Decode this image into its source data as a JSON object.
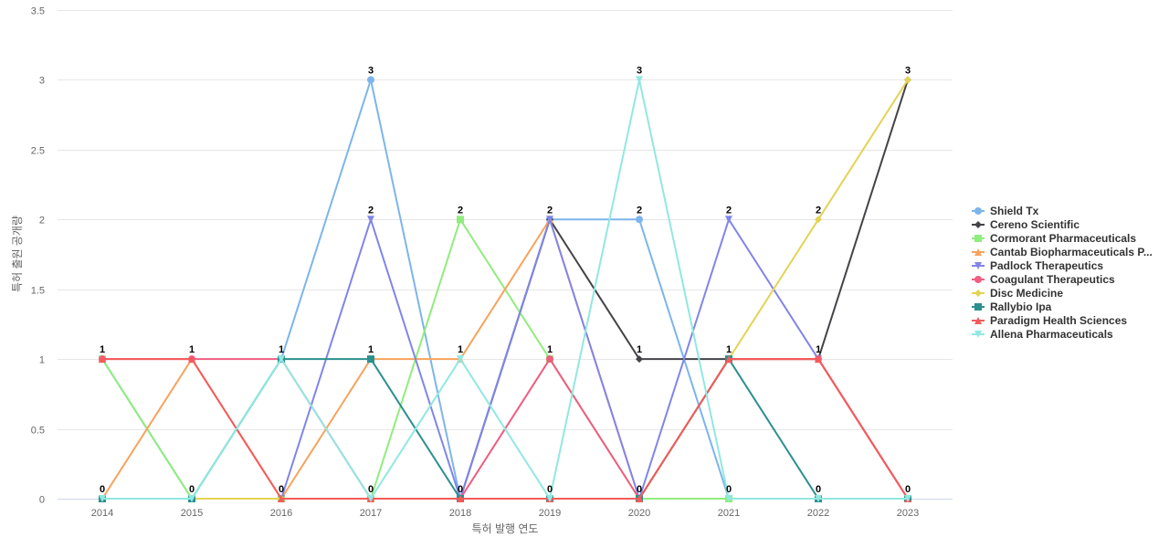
{
  "chart_data": {
    "type": "line",
    "title": "",
    "xlabel": "특허 발행 연도",
    "ylabel": "특허 출원 공개량",
    "x": [
      "2014",
      "2015",
      "2016",
      "2017",
      "2018",
      "2019",
      "2020",
      "2021",
      "2022",
      "2023"
    ],
    "ylim": [
      0,
      3.5
    ],
    "yticks": [
      0,
      0.5,
      1,
      1.5,
      2,
      2.5,
      3,
      3.5
    ],
    "grid": "horizontal",
    "legend_position": "right",
    "series": [
      {
        "name": "Shield Tx",
        "legend_label": "Shield Tx",
        "color": "#7cb5ec",
        "marker": "circle",
        "values": [
          1,
          0,
          1,
          3,
          0,
          2,
          2,
          0,
          0,
          0
        ]
      },
      {
        "name": "Cereno Scientific",
        "legend_label": "Cereno Scientific",
        "color": "#434348",
        "marker": "diamond",
        "values": [
          0,
          0,
          0,
          0,
          0,
          2,
          1,
          1,
          1,
          3
        ]
      },
      {
        "name": "Cormorant Pharmaceuticals",
        "legend_label": "Cormorant Pharmaceuticals",
        "color": "#90ed7d",
        "marker": "square",
        "values": [
          1,
          0,
          0,
          0,
          2,
          1,
          0,
          0,
          0,
          0
        ]
      },
      {
        "name": "Cantab Biopharmaceuticals P...",
        "legend_label": "Cantab Biopharmaceuticals P...",
        "color": "#f7a35c",
        "marker": "triangle",
        "values": [
          0,
          1,
          0,
          1,
          1,
          2,
          0,
          1,
          1,
          0
        ]
      },
      {
        "name": "Padlock Therapeutics",
        "legend_label": "Padlock Therapeutics",
        "color": "#8085e9",
        "marker": "triangle-down",
        "values": [
          0,
          0,
          0,
          2,
          0,
          2,
          0,
          2,
          1,
          0
        ]
      },
      {
        "name": "Coagulant Therapeutics",
        "legend_label": "Coagulant Therapeutics",
        "color": "#f15c80",
        "marker": "circle",
        "values": [
          1,
          1,
          1,
          0,
          0,
          1,
          0,
          1,
          1,
          0
        ]
      },
      {
        "name": "Disc Medicine",
        "legend_label": "Disc Medicine",
        "color": "#e4d354",
        "marker": "diamond",
        "values": [
          0,
          0,
          0,
          0,
          0,
          0,
          0,
          1,
          2,
          3
        ]
      },
      {
        "name": "Rallybio Ipa",
        "legend_label": "Rallybio Ipa",
        "color": "#2b908f",
        "marker": "square",
        "values": [
          0,
          0,
          1,
          1,
          0,
          0,
          0,
          1,
          0,
          0
        ]
      },
      {
        "name": "Paradigm Health Sciences",
        "legend_label": "Paradigm Health Sciences",
        "color": "#f45b5b",
        "marker": "triangle",
        "values": [
          1,
          1,
          0,
          0,
          0,
          0,
          0,
          1,
          1,
          0
        ]
      },
      {
        "name": "Allena Pharmaceuticals",
        "legend_label": "Allena Pharmaceuticals",
        "color": "#91e8e1",
        "marker": "triangle-down",
        "values": [
          0,
          0,
          1,
          0,
          1,
          0,
          3,
          0,
          0,
          0
        ]
      }
    ],
    "data_labels": [
      1,
      1,
      1,
      3,
      2,
      2,
      3,
      2,
      2,
      3
    ],
    "data_labels_bottom": [
      0,
      0,
      0,
      0,
      0,
      0,
      0,
      0,
      0,
      0
    ],
    "extra_labels": {
      "x": [
        "2014",
        "2015",
        "2016",
        "2017",
        "2018",
        "2019",
        "2020",
        "2021",
        "2022",
        "2023"
      ],
      "second_row": [
        "",
        "",
        "",
        "1",
        "1",
        "1",
        "1",
        "1",
        "1",
        "1"
      ],
      "second_row_values": [
        null,
        null,
        null,
        1,
        1,
        1,
        1,
        1,
        1,
        1
      ],
      "top_row_values": [
        1,
        1,
        1,
        3,
        2,
        2,
        3,
        2,
        2,
        3
      ],
      "mid_row": [
        "",
        "",
        "",
        "2",
        "",
        "",
        "2",
        "",
        "",
        ""
      ],
      "mid_row_values": [
        null,
        null,
        null,
        2,
        null,
        null,
        2,
        null,
        null,
        null
      ]
    }
  }
}
